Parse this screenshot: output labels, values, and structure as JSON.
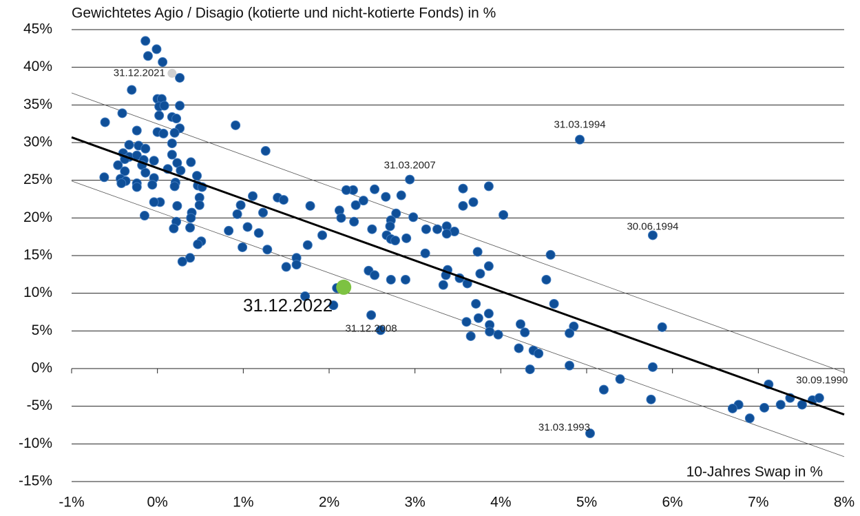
{
  "chart_data": {
    "type": "scatter",
    "title": "Gewichtetes Agio / Disagio (kotierte und nicht-kotierte Fonds) in %",
    "x_label": "10-Jahres Swap in %",
    "xlim": [
      -1,
      8
    ],
    "ylim": [
      -15,
      45
    ],
    "xticks": [
      {
        "value": -1,
        "label": "-1%"
      },
      {
        "value": 0,
        "label": "0%"
      },
      {
        "value": 1,
        "label": "1%"
      },
      {
        "value": 2,
        "label": "2%"
      },
      {
        "value": 3,
        "label": "3%"
      },
      {
        "value": 4,
        "label": "4%"
      },
      {
        "value": 5,
        "label": "5%"
      },
      {
        "value": 6,
        "label": "6%"
      },
      {
        "value": 7,
        "label": "7%"
      },
      {
        "value": 8,
        "label": "8%"
      }
    ],
    "yticks": [
      {
        "value": -15,
        "label": "-15%"
      },
      {
        "value": -10,
        "label": "-10%"
      },
      {
        "value": -5,
        "label": "-5%"
      },
      {
        "value": 0,
        "label": "0%"
      },
      {
        "value": 5,
        "label": "5%"
      },
      {
        "value": 10,
        "label": "10%"
      },
      {
        "value": 15,
        "label": "15%"
      },
      {
        "value": 20,
        "label": "20%"
      },
      {
        "value": 25,
        "label": "25%"
      },
      {
        "value": 30,
        "label": "30%"
      },
      {
        "value": 35,
        "label": "35%"
      },
      {
        "value": 40,
        "label": "40%"
      },
      {
        "value": 45,
        "label": "45%"
      }
    ],
    "grid": true,
    "color": "#0f4f98",
    "x": [
      -0.14,
      -0.01,
      -0.11,
      0.06,
      0.26,
      -0.3,
      0,
      0.05,
      0.02,
      0.26,
      -0.41,
      0.08,
      0.02,
      0.17,
      -0.61,
      0.22,
      0.91,
      -0.24,
      0,
      0.26,
      0.07,
      0.2,
      0.17,
      -0.33,
      -0.22,
      -0.14,
      1.26,
      -0.4,
      0.17,
      -0.33,
      -0.24,
      -0.38,
      -0.16,
      0.39,
      -0.04,
      0.23,
      -0.18,
      -0.46,
      0.12,
      0.27,
      -0.38,
      -0.14,
      0.46,
      -0.62,
      -0.04,
      -0.43,
      -0.37,
      0.21,
      -0.24,
      -0.06,
      0.47,
      -0.42,
      0.2,
      0.52,
      -0.24,
      3.86,
      3.56,
      2.53,
      2.28,
      2.2,
      2.66,
      3.68,
      2.84,
      1.11,
      0.03,
      -0.04,
      1.4,
      1.47,
      2.4,
      0.49,
      2.31,
      0.23,
      3.56,
      1.78,
      0.49,
      0.97,
      0.93,
      2.12,
      2.78,
      4.03,
      -0.15,
      0.4,
      1.23,
      0.39,
      2.14,
      2.98,
      2.72,
      2.29,
      0.22,
      3.13,
      3.26,
      3.37,
      0.83,
      2.5,
      2.71,
      1.05,
      0.19,
      0.38,
      3.46,
      3.37,
      2.67,
      1.18,
      1.92,
      2.9,
      2.72,
      2.77,
      0.51,
      0.47,
      0.99,
      1.75,
      1.28,
      3.73,
      3.12,
      4.58,
      1.62,
      0.38,
      0.29,
      1.5,
      1.62,
      3.86,
      3.38,
      2.46,
      3.76,
      3.36,
      2.53,
      3.52,
      4.53,
      2.72,
      2.89,
      3.61,
      3.33,
      2.09,
      1.72,
      4.62,
      3.71,
      2.05,
      3.86,
      3.74,
      3.6,
      4.23,
      3.87,
      4.85,
      5.88,
      4.28,
      2.6,
      3.87,
      4.8,
      3.97,
      3.65,
      4.21,
      4.38,
      4.44,
      4.8,
      5.77,
      4.34,
      5.39,
      7.12,
      5.2,
      7.37,
      7.51,
      7.26,
      7.63,
      7.71,
      6.77,
      5.75,
      6.7,
      7.07,
      6.9,
      5.04,
      4.92,
      2.94,
      5.77,
      2.49
    ],
    "values": [
      43.5,
      42.4,
      41.5,
      40.7,
      38.6,
      37.0,
      35.8,
      35.8,
      34.8,
      34.9,
      33.9,
      34.9,
      33.6,
      33.4,
      32.7,
      33.2,
      32.3,
      31.6,
      31.4,
      31.9,
      31.2,
      31.3,
      29.9,
      29.7,
      29.6,
      29.2,
      28.9,
      28.6,
      28.4,
      28.1,
      28.3,
      27.8,
      27.7,
      27.4,
      27.6,
      27.3,
      27.0,
      27.0,
      26.5,
      26.3,
      26.2,
      26.0,
      25.6,
      25.4,
      25.3,
      25.2,
      24.9,
      24.7,
      24.6,
      24.4,
      24.3,
      24.6,
      24.2,
      24.1,
      24.1,
      24.2,
      23.9,
      23.8,
      23.7,
      23.7,
      22.8,
      22.1,
      23.0,
      22.9,
      22.1,
      22.1,
      22.7,
      22.4,
      22.3,
      22.7,
      21.7,
      21.6,
      21.6,
      21.6,
      21.7,
      21.7,
      20.5,
      21.0,
      20.6,
      20.4,
      20.3,
      20.7,
      20.7,
      20.0,
      20.0,
      20.1,
      19.7,
      19.5,
      19.5,
      18.5,
      18.5,
      18.9,
      18.3,
      18.5,
      18.9,
      18.8,
      18.6,
      18.7,
      18.2,
      17.9,
      17.7,
      18.0,
      17.7,
      17.3,
      17.2,
      17.0,
      16.9,
      16.5,
      16.1,
      16.4,
      15.8,
      15.5,
      15.3,
      15.1,
      14.7,
      14.7,
      14.2,
      13.5,
      13.8,
      13.6,
      13.1,
      13.0,
      12.6,
      12.4,
      12.4,
      12.0,
      11.8,
      11.8,
      11.8,
      11.3,
      11.1,
      10.7,
      9.6,
      8.6,
      8.6,
      8.4,
      7.3,
      6.7,
      6.2,
      5.9,
      5.8,
      5.6,
      5.5,
      4.8,
      5.1,
      4.9,
      4.7,
      4.5,
      4.3,
      2.7,
      2.4,
      2.0,
      0.4,
      0.2,
      -0.1,
      -1.4,
      -2.1,
      -2.8,
      -3.9,
      -4.8,
      -4.8,
      -4.2,
      -3.9,
      -4.8,
      -4.1,
      -5.3,
      -5.2,
      -6.6,
      -8.6,
      30.4,
      25.1,
      17.7,
      7.1
    ],
    "highlights": [
      {
        "text": "31.12.2021",
        "x": 0.17,
        "y": 39.2,
        "color": "#d0d0d0"
      },
      {
        "text": "31.12.2022",
        "x": 2.17,
        "y": 10.8,
        "color": "#7dc242"
      }
    ],
    "annotations": [
      {
        "text": "31.03.1994",
        "x": 4.92,
        "y": 30.4
      },
      {
        "text": "31.03.2007",
        "x": 2.94,
        "y": 25.1
      },
      {
        "text": "30.06.1994",
        "x": 5.77,
        "y": 17.7
      },
      {
        "text": "31.12.2008",
        "x": 2.49,
        "y": 7.1
      },
      {
        "text": "31.03.1993",
        "x": 5.04,
        "y": -8.6
      },
      {
        "text": "30.09.1990",
        "x": 7.71,
        "y": -3.9
      }
    ],
    "trend": {
      "x": [
        -1,
        8
      ],
      "values": [
        30.7,
        -6.1
      ]
    },
    "band_upper": {
      "x": [
        -1,
        8
      ],
      "values": [
        36.6,
        -0.5
      ]
    },
    "band_lower": {
      "x": [
        -1,
        8
      ],
      "values": [
        24.9,
        -11.7
      ]
    }
  }
}
